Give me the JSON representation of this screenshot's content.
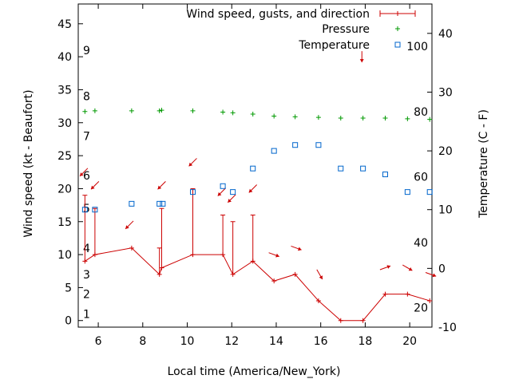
{
  "chart_data": {
    "type": "line",
    "xlabel": "Local time (America/New_York)",
    "ylabel": "Wind speed (kt - Beaufort)",
    "y2label": "Temperature (C - F)",
    "xlim": [
      5.1,
      21.0
    ],
    "ylim": [
      -1,
      48
    ],
    "y2lim": [
      -10,
      45
    ],
    "x_ticks": [
      6,
      8,
      10,
      12,
      14,
      16,
      18,
      20
    ],
    "y_ticks": [
      0,
      5,
      10,
      15,
      20,
      25,
      30,
      35,
      40,
      45
    ],
    "y2_ticks": [
      -10,
      0,
      10,
      20,
      30,
      40
    ],
    "beaufort_labels": [
      {
        "label": "1",
        "kt": 1
      },
      {
        "label": "2",
        "kt": 4
      },
      {
        "label": "3",
        "kt": 7
      },
      {
        "label": "4",
        "kt": 11
      },
      {
        "label": "5",
        "kt": 17
      },
      {
        "label": "6",
        "kt": 22
      },
      {
        "label": "7",
        "kt": 28
      },
      {
        "label": "8",
        "kt": 34
      },
      {
        "label": "9",
        "kt": 41
      }
    ],
    "fahrenheit_labels": [
      {
        "label": "20",
        "c": -6.7
      },
      {
        "label": "40",
        "c": 4.4
      },
      {
        "label": "60",
        "c": 15.6
      },
      {
        "label": "80",
        "c": 26.7
      },
      {
        "label": "100",
        "c": 37.8
      }
    ],
    "legend": [
      "Wind speed, gusts, and direction",
      "Pressure",
      "Temperature"
    ],
    "legend_position": "top-right",
    "colors": {
      "wind": "#cc0000",
      "pressure": "#009900",
      "temperature": "#0066cc"
    },
    "series": [
      {
        "name": "Wind speed, gusts, and direction",
        "x": [
          5.4,
          5.85,
          7.5,
          8.75,
          8.85,
          10.25,
          11.6,
          12.05,
          12.95,
          13.9,
          14.85,
          15.9,
          16.9,
          17.9,
          18.9,
          19.9,
          20.9
        ],
        "values": [
          9,
          10,
          11,
          7,
          8,
          10,
          10,
          7,
          9,
          6,
          7,
          3,
          0,
          0,
          4,
          4,
          3
        ],
        "gusts": [
          19,
          17,
          null,
          11,
          17,
          20,
          16,
          15,
          16,
          null,
          null,
          null,
          null,
          null,
          null,
          null,
          null
        ]
      },
      {
        "name": "Wind direction arrows",
        "x": [
          5.35,
          5.85,
          7.4,
          8.85,
          10.25,
          11.55,
          12.0,
          12.95,
          13.9,
          14.9,
          15.95,
          17.85,
          18.9,
          19.9,
          20.95
        ],
        "y": [
          22.5,
          20.5,
          14.5,
          20.5,
          24,
          19.5,
          18.5,
          20,
          10,
          11,
          7,
          40,
          8,
          8,
          7
        ],
        "direction_deg": [
          45,
          45,
          45,
          45,
          45,
          45,
          45,
          45,
          290,
          290,
          330,
          0,
          250,
          300,
          290
        ]
      },
      {
        "name": "Pressure",
        "x": [
          5.4,
          5.85,
          7.5,
          8.75,
          8.85,
          10.25,
          11.6,
          12.05,
          12.95,
          13.9,
          14.85,
          15.9,
          16.9,
          17.9,
          18.9,
          19.9,
          20.9
        ],
        "values": [
          31.7,
          31.8,
          31.8,
          31.8,
          31.9,
          31.8,
          31.6,
          31.5,
          31.3,
          31.0,
          30.9,
          30.8,
          30.7,
          30.7,
          30.7,
          30.6,
          30.5
        ]
      },
      {
        "name": "Temperature",
        "x": [
          5.4,
          5.85,
          7.5,
          8.75,
          8.9,
          10.25,
          11.6,
          12.05,
          12.95,
          13.9,
          14.85,
          15.9,
          16.9,
          17.9,
          18.9,
          19.9,
          20.9
        ],
        "values": [
          10,
          10,
          11,
          11,
          11,
          13,
          14,
          13,
          17,
          20,
          21,
          21,
          17,
          17,
          16,
          13,
          13
        ]
      }
    ]
  }
}
